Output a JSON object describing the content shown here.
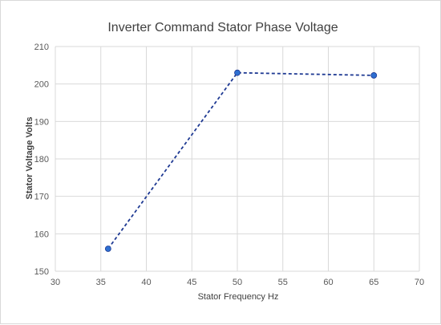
{
  "chart_data": {
    "type": "scatter",
    "title": "Inverter Command Stator Phase Voltage",
    "xlabel": "Stator Frequency Hz",
    "ylabel": "Stator Voltage Volts",
    "xlim": [
      30,
      70
    ],
    "ylim": [
      150,
      210
    ],
    "xticks": [
      30,
      35,
      40,
      45,
      50,
      55,
      60,
      65,
      70
    ],
    "yticks": [
      150,
      160,
      170,
      180,
      190,
      200,
      210
    ],
    "grid": true,
    "legend": "none",
    "series": [
      {
        "x": [
          35.8,
          50,
          65
        ],
        "y": [
          156,
          203,
          202.3
        ],
        "color": "#1f3a93",
        "marker_color": "#2e6fd1",
        "line_style": "dashed"
      }
    ]
  }
}
